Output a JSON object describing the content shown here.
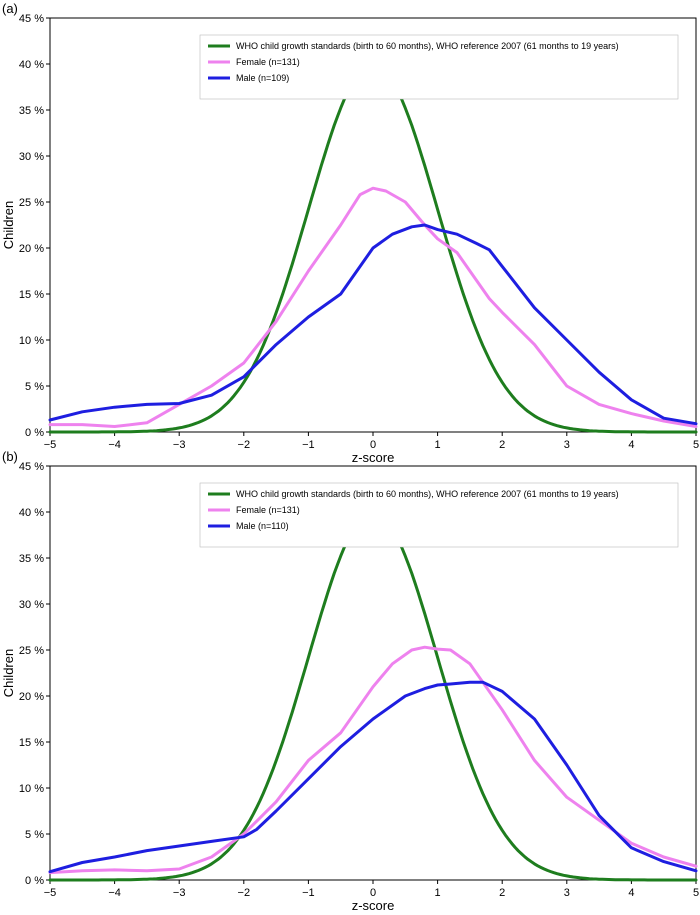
{
  "chart_data": [
    {
      "type": "line",
      "panel_label": "(a)",
      "xlabel": "z-score",
      "ylabel": "Children",
      "xlim": [
        -5,
        5
      ],
      "ylim": [
        0,
        45
      ],
      "x_ticks": [
        "−5",
        "−4",
        "−3",
        "−2",
        "−1",
        "0",
        "1",
        "2",
        "3",
        "4",
        "5"
      ],
      "y_ticks": [
        "0 %",
        "5 %",
        "10 %",
        "15 %",
        "20 %",
        "25 %",
        "30 %",
        "35 %",
        "40 %",
        "45 %"
      ],
      "legend_position": "top-right",
      "series": [
        {
          "name": "WHO child growth standards (birth to 60 months), WHO reference 2007 (61 months to 19 years)",
          "color": "#1e7d1e",
          "kind": "normal_pdf_percent",
          "mean": 0,
          "sd": 1
        },
        {
          "name": "Female (n=131)",
          "color": "#ee82ee",
          "x": [
            -5,
            -4.5,
            -4,
            -3.5,
            -3,
            -2.5,
            -2,
            -1.5,
            -1,
            -0.5,
            -0.2,
            0,
            0.2,
            0.5,
            0.8,
            1,
            1.3,
            1.6,
            1.8,
            2,
            2.5,
            3,
            3.5,
            4,
            4.5,
            5
          ],
          "y": [
            0.8,
            0.8,
            0.6,
            1.0,
            3.0,
            5.0,
            7.5,
            12.0,
            17.5,
            22.5,
            25.8,
            26.5,
            26.2,
            25.0,
            22.5,
            21.0,
            19.5,
            16.5,
            14.5,
            13.0,
            9.5,
            5.0,
            3.0,
            2.0,
            1.2,
            0.6
          ]
        },
        {
          "name": "Male (n=109)",
          "color": "#1e1ee0",
          "x": [
            -5,
            -4.5,
            -4,
            -3.5,
            -3,
            -2.5,
            -2,
            -1.5,
            -1,
            -0.5,
            0,
            0.3,
            0.6,
            0.8,
            1,
            1.3,
            1.6,
            1.8,
            2,
            2.5,
            3,
            3.5,
            4,
            4.5,
            5
          ],
          "y": [
            1.3,
            2.2,
            2.7,
            3.0,
            3.1,
            4.0,
            6.0,
            9.5,
            12.5,
            15.0,
            20.0,
            21.5,
            22.3,
            22.5,
            22.0,
            21.5,
            20.5,
            19.8,
            18.0,
            13.5,
            10.0,
            6.5,
            3.5,
            1.5,
            0.9
          ]
        }
      ]
    },
    {
      "type": "line",
      "panel_label": "(b)",
      "xlabel": "z-score",
      "ylabel": "Children",
      "xlim": [
        -5,
        5
      ],
      "ylim": [
        0,
        45
      ],
      "x_ticks": [
        "−5",
        "−4",
        "−3",
        "−2",
        "−1",
        "0",
        "1",
        "2",
        "3",
        "4",
        "5"
      ],
      "y_ticks": [
        "0 %",
        "5 %",
        "10 %",
        "15 %",
        "20 %",
        "25 %",
        "30 %",
        "35 %",
        "40 %",
        "45 %"
      ],
      "legend_position": "top-right",
      "series": [
        {
          "name": "WHO child growth standards (birth to 60 months), WHO reference 2007 (61 months to 19 years)",
          "color": "#1e7d1e",
          "kind": "normal_pdf_percent",
          "mean": 0,
          "sd": 1
        },
        {
          "name": "Female (n=131)",
          "color": "#ee82ee",
          "x": [
            -5,
            -4.5,
            -4,
            -3.5,
            -3,
            -2.5,
            -2,
            -1.5,
            -1,
            -0.5,
            0,
            0.3,
            0.6,
            0.8,
            1,
            1.2,
            1.5,
            2,
            2.5,
            3,
            3.5,
            4,
            4.5,
            5
          ],
          "y": [
            0.8,
            1.0,
            1.1,
            1.0,
            1.2,
            2.5,
            5.0,
            8.5,
            13.0,
            16.0,
            21.0,
            23.5,
            25.0,
            25.3,
            25.1,
            25.0,
            23.5,
            18.5,
            13.0,
            9.0,
            6.5,
            4.0,
            2.5,
            1.5
          ]
        },
        {
          "name": "Male (n=110)",
          "color": "#1e1ee0",
          "x": [
            -5,
            -4.5,
            -4,
            -3.5,
            -3,
            -2.5,
            -2,
            -1.8,
            -1.5,
            -1,
            -0.5,
            0,
            0.5,
            0.8,
            1,
            1.2,
            1.5,
            1.7,
            2,
            2.5,
            3,
            3.5,
            4,
            4.5,
            5
          ],
          "y": [
            0.9,
            1.9,
            2.5,
            3.2,
            3.7,
            4.2,
            4.7,
            5.5,
            7.5,
            11.0,
            14.5,
            17.5,
            20.0,
            20.8,
            21.2,
            21.3,
            21.5,
            21.5,
            20.5,
            17.5,
            12.5,
            7.0,
            3.5,
            2.0,
            1.0
          ]
        }
      ]
    }
  ]
}
